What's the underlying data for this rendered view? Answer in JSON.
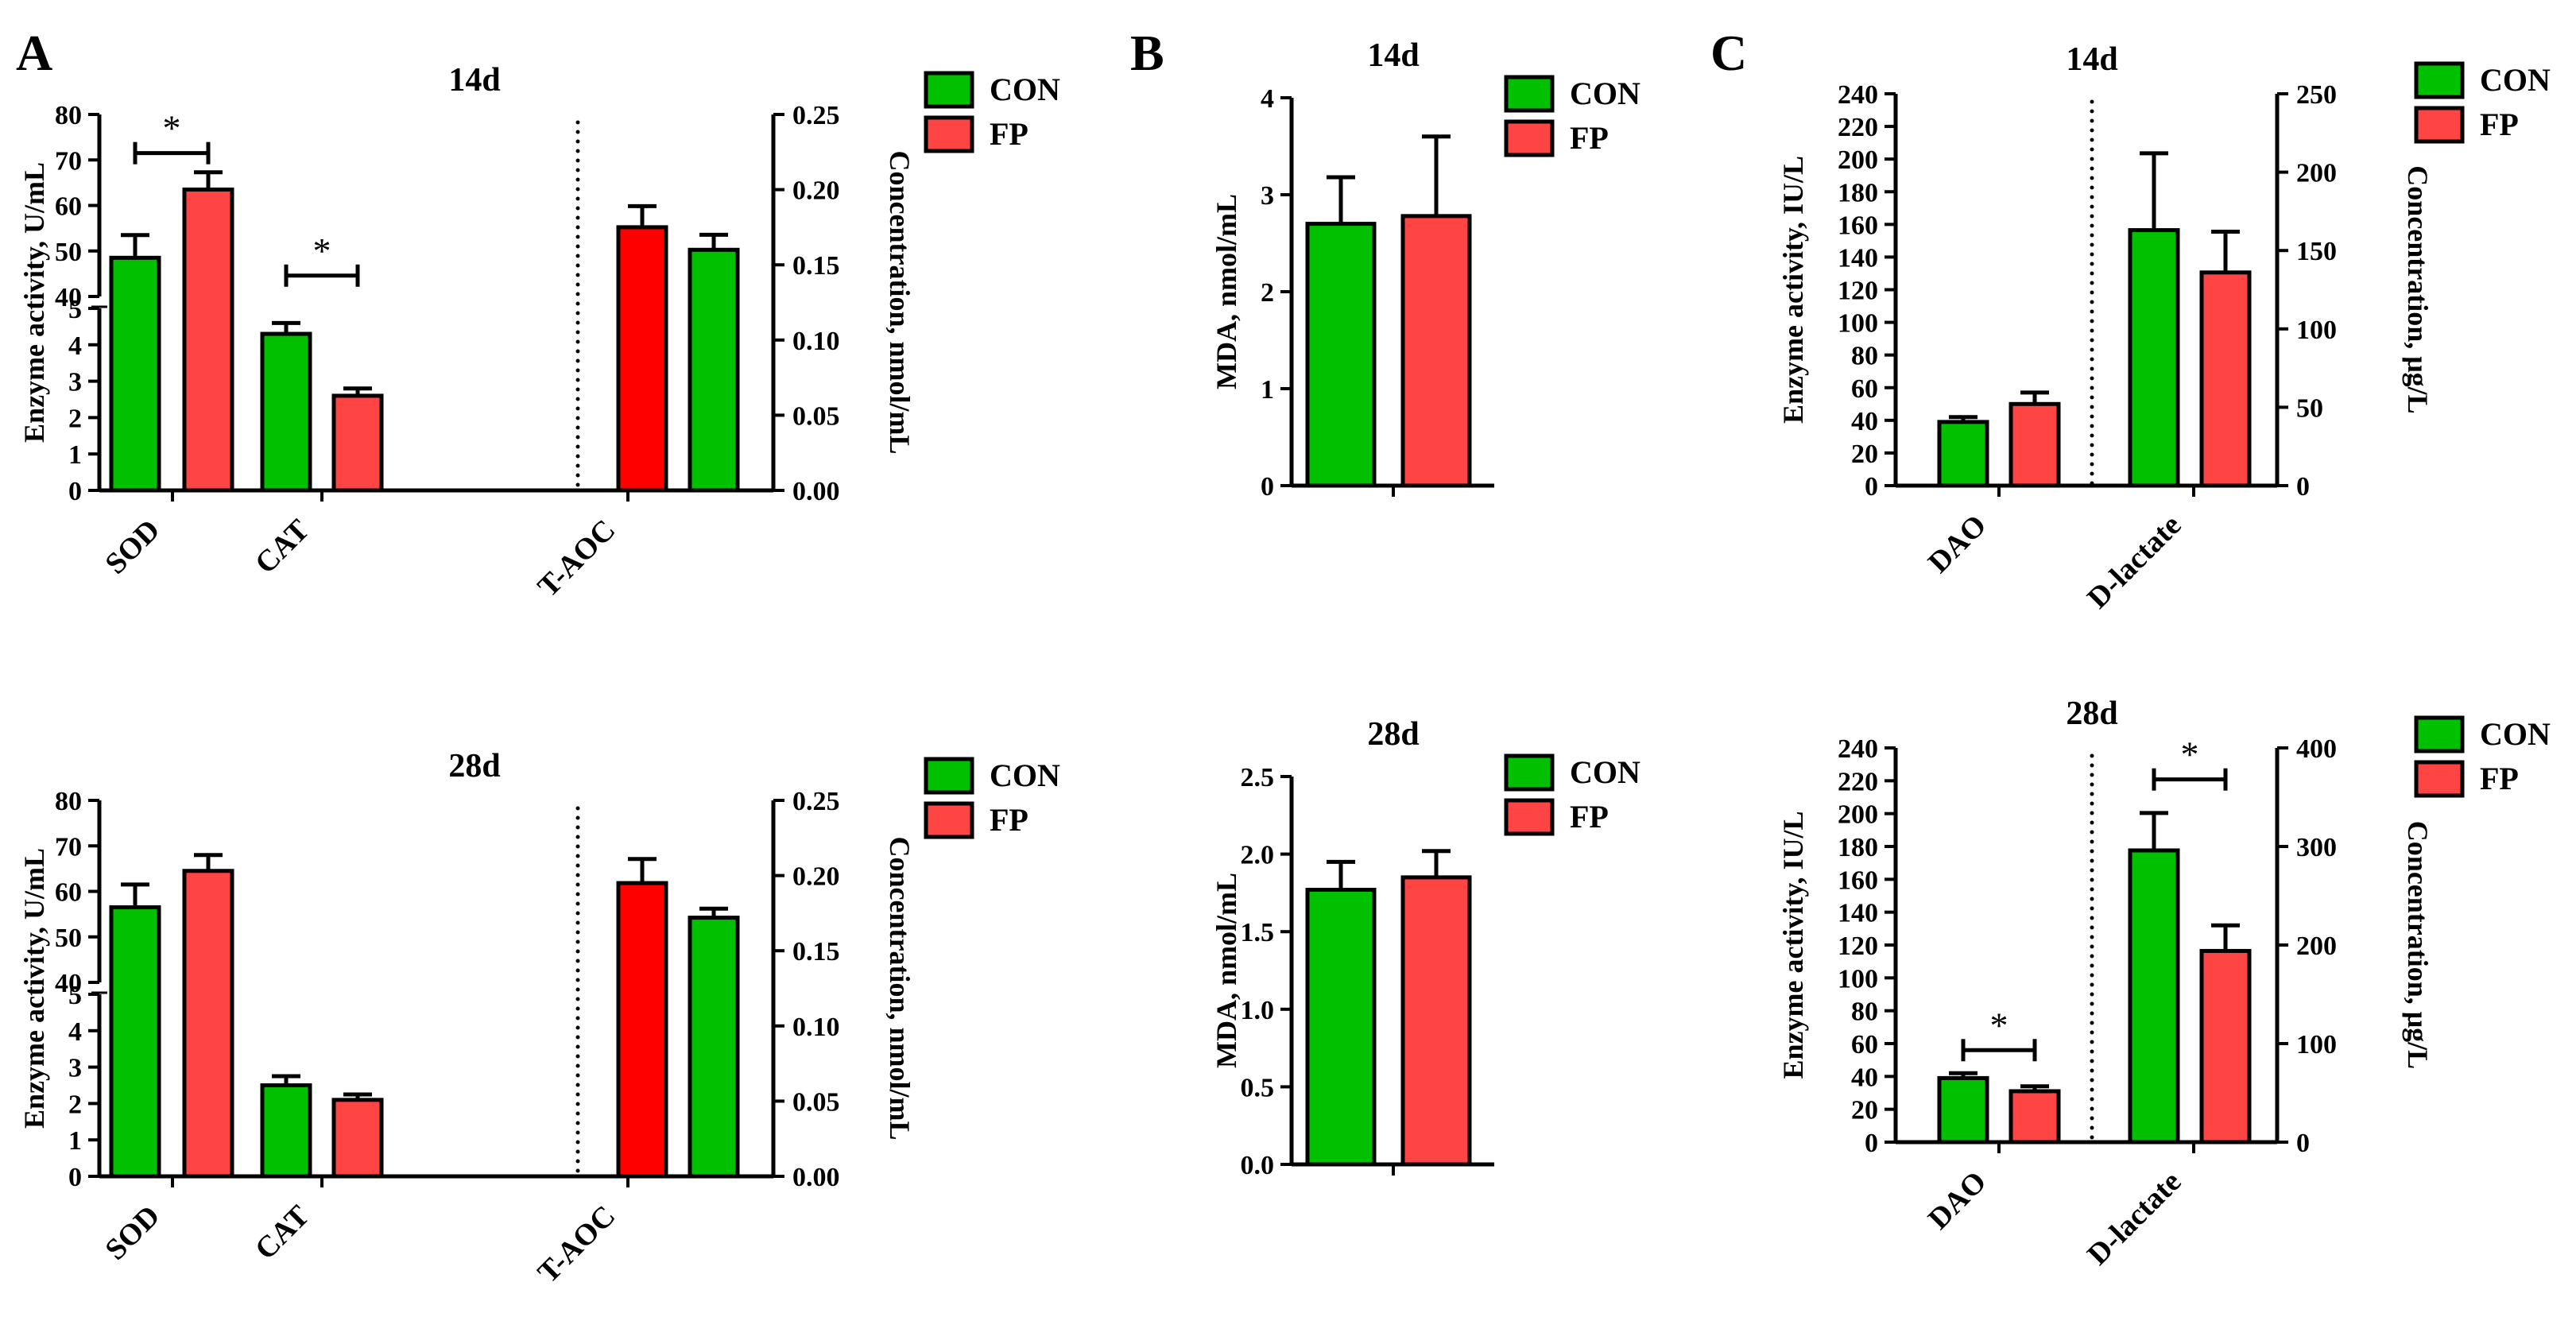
{
  "panel_labels": [
    "A",
    "B",
    "C"
  ],
  "colors": {
    "con": "#00c000",
    "fp": "#ff4444",
    "fp_dark": "#ff0000",
    "axis": "#000000"
  },
  "chart_data": [
    {
      "id": "A14",
      "type": "bar",
      "title": "14d",
      "ylabel_left": "Enzyme activity, U/mL",
      "ylabel_right": "Concentration, nmol/mL",
      "ylim_left_lower": [
        0,
        5
      ],
      "ylim_left_upper": [
        40,
        80
      ],
      "ylim_right": [
        0,
        0.25
      ],
      "yticks_left_lower": [
        "0",
        "1",
        "2",
        "3",
        "4",
        "5"
      ],
      "yticks_left_upper": [
        "40",
        "50",
        "60",
        "70",
        "80"
      ],
      "yticks_right": [
        "0.00",
        "0.05",
        "0.10",
        "0.15",
        "0.20",
        "0.25"
      ],
      "categories": [
        "SOD",
        "CAT",
        "T-AOC"
      ],
      "legend": [
        "CON",
        "FP"
      ],
      "series": [
        {
          "name": "CON",
          "values": [
            48.5,
            4.3,
            0.16
          ],
          "errors": [
            5.0,
            0.3,
            0.01
          ]
        },
        {
          "name": "FP",
          "values": [
            63.5,
            2.6,
            0.175
          ],
          "errors": [
            3.8,
            0.2,
            0.014
          ]
        }
      ],
      "significance": [
        "*",
        "*"
      ]
    },
    {
      "id": "A28",
      "type": "bar",
      "title": "28d",
      "ylabel_left": "Enzyme activity, U/mL",
      "ylabel_right": "Concentration, nmol/mL",
      "ylim_left_lower": [
        0,
        5
      ],
      "ylim_left_upper": [
        40,
        80
      ],
      "ylim_right": [
        0,
        0.25
      ],
      "yticks_left_lower": [
        "0",
        "1",
        "2",
        "3",
        "4",
        "5"
      ],
      "yticks_left_upper": [
        "40",
        "50",
        "60",
        "70",
        "80"
      ],
      "yticks_right": [
        "0.00",
        "0.05",
        "0.10",
        "0.15",
        "0.20",
        "0.25"
      ],
      "categories": [
        "SOD",
        "CAT",
        "T-AOC"
      ],
      "legend": [
        "CON",
        "FP"
      ],
      "series": [
        {
          "name": "CON",
          "values": [
            56.5,
            2.5,
            0.172
          ],
          "errors": [
            5.0,
            0.25,
            0.006
          ]
        },
        {
          "name": "FP",
          "values": [
            64.5,
            2.1,
            0.195
          ],
          "errors": [
            3.5,
            0.15,
            0.016
          ]
        }
      ],
      "significance": []
    },
    {
      "id": "B14",
      "type": "bar",
      "title": "14d",
      "ylabel": "MDA, nmol/mL",
      "ylim": [
        0,
        4
      ],
      "yticks": [
        "0",
        "1",
        "2",
        "3",
        "4"
      ],
      "legend": [
        "CON",
        "FP"
      ],
      "series": [
        {
          "name": "CON",
          "values": [
            2.7
          ],
          "errors": [
            0.48
          ]
        },
        {
          "name": "FP",
          "values": [
            2.78
          ],
          "errors": [
            0.82
          ]
        }
      ]
    },
    {
      "id": "B28",
      "type": "bar",
      "title": "28d",
      "ylabel": "MDA, nmol/mL",
      "ylim": [
        0,
        2.5
      ],
      "yticks": [
        "0.0",
        "0.5",
        "1.0",
        "1.5",
        "2.0",
        "2.5"
      ],
      "legend": [
        "CON",
        "FP"
      ],
      "series": [
        {
          "name": "CON",
          "values": [
            1.77
          ],
          "errors": [
            0.18
          ]
        },
        {
          "name": "FP",
          "values": [
            1.85
          ],
          "errors": [
            0.17
          ]
        }
      ]
    },
    {
      "id": "C14",
      "type": "bar",
      "title": "14d",
      "ylabel_left": "Enzyme activity, IU/L",
      "ylabel_right": "Concentration, μg/L",
      "ylim_left": [
        0,
        240
      ],
      "ylim_right": [
        0,
        250
      ],
      "yticks_left": [
        "0",
        "20",
        "40",
        "60",
        "80",
        "100",
        "120",
        "140",
        "160",
        "180",
        "200",
        "220",
        "240"
      ],
      "yticks_right": [
        "0",
        "50",
        "100",
        "150",
        "200",
        "250"
      ],
      "categories": [
        "DAO",
        "D-lactate"
      ],
      "legend": [
        "CON",
        "FP"
      ],
      "series": [
        {
          "name": "CON",
          "values": [
            39,
            163
          ],
          "errors": [
            3,
            49
          ]
        },
        {
          "name": "FP",
          "values": [
            50,
            136
          ],
          "errors": [
            7,
            26
          ]
        }
      ],
      "significance": []
    },
    {
      "id": "C28",
      "type": "bar",
      "title": "28d",
      "ylabel_left": "Enzyme activity, IU/L",
      "ylabel_right": "Concentration, μg/L",
      "ylim_left": [
        0,
        240
      ],
      "ylim_right": [
        0,
        400
      ],
      "yticks_left": [
        "0",
        "20",
        "40",
        "60",
        "80",
        "100",
        "120",
        "140",
        "160",
        "180",
        "200",
        "220",
        "240"
      ],
      "yticks_right": [
        "0",
        "100",
        "200",
        "300",
        "400"
      ],
      "categories": [
        "DAO",
        "D-lactate"
      ],
      "legend": [
        "CON",
        "FP"
      ],
      "series": [
        {
          "name": "CON",
          "values": [
            39,
            296
          ],
          "errors": [
            3,
            38
          ]
        },
        {
          "name": "FP",
          "values": [
            31,
            194
          ],
          "errors": [
            3,
            26
          ]
        }
      ],
      "significance": [
        "*",
        "*"
      ]
    }
  ]
}
